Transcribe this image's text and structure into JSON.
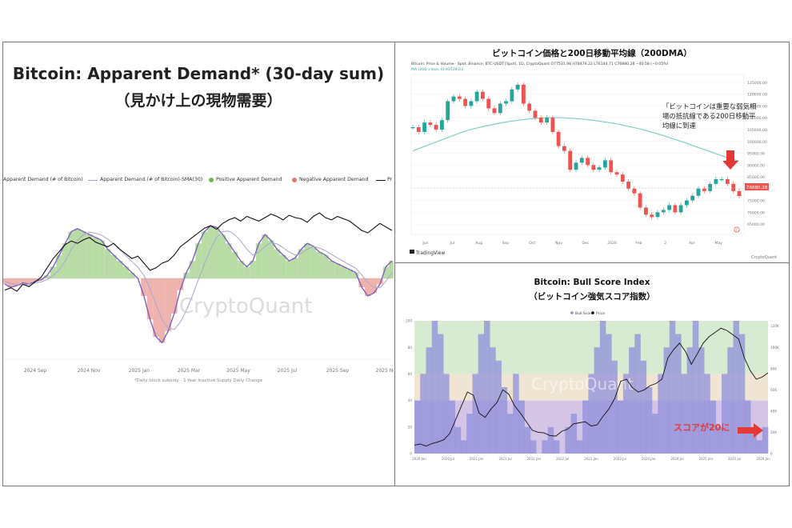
{
  "panels": {
    "left": {
      "title": "Bitcoin: Apparent Demand* (30-day sum)",
      "subtitle": "（見かけ上の現物需要）",
      "legend": [
        {
          "label": "Apparent Demand (# of Bitcoin)",
          "color": "#b38bd6",
          "kind": "line"
        },
        {
          "label": "Apparent Demand (# of Bitcoin)-SMA(30)",
          "color": "#a7a7cc",
          "kind": "line"
        },
        {
          "label": "Positive Apparent Demand",
          "color": "#6dbb4b",
          "kind": "dot"
        },
        {
          "label": "Negative Apparent Demand",
          "color": "#e07a72",
          "kind": "dot"
        },
        {
          "label": "Pr",
          "color": "#111111",
          "kind": "line"
        }
      ],
      "footnote": "*Daily block subsidy - 1-Year Inactive Supply Daily Change",
      "watermark": "CryptoQuant"
    },
    "top_right": {
      "title": "ビットコイン価格と200日移動平均線（200DMA）",
      "header_line": "Bitcoin: Price & Volume · Spot, Binance, BTC-USDT [Spot], 1D, CryptoQuant  O77531.98  H78479.22  L76144.71  C76880.28  −40.58 (−0.05%)",
      "ma_line": "MA (200, close, 0)  91639.03",
      "annotation": "「ビットコインは重要な弱気相場の抵抗線である200日移動平均線に到達",
      "price_tag": "76880.28",
      "logo": "TradingView",
      "logo_right": "CryptoQuant"
    },
    "bottom_right": {
      "title": "Bitcoin: Bull Score Index",
      "subtitle": "（ビットコイン強気スコア指数）",
      "legend": [
        {
          "label": "Bull Score",
          "color": "#8c8cd9"
        },
        {
          "label": "Price",
          "color": "#111111"
        }
      ],
      "callout": "スコアが20に",
      "watermark": "CryptoQuant",
      "colors": {
        "green_zone": "#d7ead2",
        "neutral_zone": "#f0e5d2",
        "purple_zone": "#d4c4e6",
        "score_fill": "#8c8cd9",
        "arrow": "#e53935"
      }
    }
  },
  "chart_data": [
    {
      "type": "area",
      "title": "Bitcoin: Apparent Demand* (30-day sum)",
      "subtitle": "（見かけ上の現物需要）",
      "x_ticks": [
        "2024 Sep",
        "2024 Nov",
        "2025 Jan",
        "2025 Mar",
        "2025 May",
        "2025 Jul",
        "2025 Sep",
        "2025 Nov"
      ],
      "series": [
        {
          "name": "Apparent Demand (# of Bitcoin)",
          "kind": "area",
          "values": [
            -20,
            -30,
            -25,
            -15,
            -20,
            -10,
            -5,
            10,
            40,
            80,
            120,
            160,
            170,
            160,
            150,
            140,
            130,
            100,
            80,
            60,
            40,
            20,
            0,
            -60,
            -140,
            -200,
            -220,
            -180,
            -120,
            -40,
            20,
            60,
            120,
            160,
            180,
            175,
            150,
            120,
            90,
            60,
            40,
            60,
            120,
            150,
            130,
            100,
            80,
            60,
            70,
            100,
            120,
            110,
            90,
            80,
            60,
            50,
            40,
            30,
            20,
            -30,
            -60,
            -50,
            -20,
            40,
            60
          ]
        },
        {
          "name": "Apparent Demand (# of Bitcoin)-SMA(30)",
          "kind": "line",
          "values": [
            -10,
            -18,
            -22,
            -22,
            -20,
            -16,
            -12,
            -4,
            10,
            30,
            60,
            100,
            130,
            150,
            158,
            155,
            148,
            135,
            118,
            98,
            78,
            58,
            38,
            10,
            -35,
            -90,
            -140,
            -170,
            -175,
            -150,
            -110,
            -60,
            -5,
            50,
            100,
            140,
            160,
            162,
            150,
            128,
            100,
            80,
            90,
            110,
            122,
            118,
            105,
            90,
            80,
            85,
            100,
            108,
            104,
            95,
            82,
            70,
            58,
            46,
            35,
            12,
            -15,
            -30,
            -32,
            -10,
            20
          ]
        },
        {
          "name": "Pr",
          "kind": "line",
          "values": [
            55,
            57,
            54,
            60,
            58,
            62,
            66,
            74,
            82,
            88,
            94,
            97,
            95,
            98,
            100,
            96,
            94,
            92,
            95,
            90,
            86,
            82,
            84,
            78,
            72,
            74,
            78,
            80,
            85,
            92,
            96,
            100,
            104,
            108,
            110,
            107,
            112,
            115,
            117,
            114,
            118,
            116,
            114,
            117,
            120,
            118,
            115,
            119,
            117,
            116,
            113,
            118,
            121,
            117,
            115,
            118,
            116,
            114,
            110,
            106,
            104,
            108,
            112,
            109,
            106
          ]
        }
      ]
    },
    {
      "type": "line",
      "title": "ビットコイン価格と200日移動平均線（200DMA）",
      "x_ticks": [
        "Jun",
        "Jul",
        "Aug",
        "Sep",
        "Oct",
        "Nov",
        "Dec",
        "2026",
        "Feb",
        "2",
        "Apr",
        "May"
      ],
      "y_ticks": [
        125000,
        120000,
        115000,
        110000,
        105000,
        100000,
        95000,
        90000,
        85000,
        80000,
        75000,
        70000,
        65000
      ],
      "series": [
        {
          "name": "Price",
          "kind": "line",
          "values": [
            106000,
            104000,
            108000,
            107000,
            105000,
            109000,
            117000,
            119000,
            118000,
            115000,
            117000,
            121000,
            118000,
            114000,
            112000,
            116000,
            117000,
            122000,
            124000,
            116000,
            113000,
            110000,
            108000,
            110000,
            104000,
            98000,
            96000,
            88000,
            91000,
            93000,
            90000,
            88000,
            89000,
            92000,
            87000,
            86000,
            83000,
            80000,
            78000,
            72000,
            69000,
            68000,
            70000,
            71000,
            73000,
            70000,
            73000,
            75000,
            77000,
            80000,
            79000,
            82000,
            84000,
            84000,
            82000,
            79000,
            76880
          ]
        },
        {
          "name": "MA (200, close, 0)",
          "kind": "line",
          "values": [
            96000,
            97500,
            99000,
            100500,
            102000,
            103500,
            104800,
            105800,
            106700,
            107500,
            108200,
            108800,
            109300,
            109700,
            110000,
            110100,
            110000,
            109800,
            109500,
            109100,
            108600,
            108000,
            107300,
            106500,
            105600,
            104600,
            103500,
            102300,
            101000,
            99700,
            98300,
            96900,
            95500,
            94100,
            92800,
            91639
          ]
        }
      ]
    },
    {
      "type": "area",
      "title": "Bitcoin: Bull Score Index",
      "subtitle": "（ビットコイン強気スコア指数）",
      "x_ticks": [
        "2020 Jan",
        "2020 Jul",
        "2021 Jan",
        "2021 Jul",
        "2022 Jan",
        "2022 Jul",
        "2023 Jan",
        "2023 Jul",
        "2024 Jan",
        "2024 Jul",
        "2025 Jan",
        "2025 Jul",
        "2026 Jan"
      ],
      "y_left_ticks": [
        0,
        20,
        40,
        60,
        80,
        100
      ],
      "y_right_ticks": [
        0,
        20000,
        40000,
        60000,
        80000,
        100000,
        120000
      ],
      "zones": [
        {
          "from": 60,
          "to": 100,
          "name": "bullish"
        },
        {
          "from": 40,
          "to": 60,
          "name": "neutral"
        },
        {
          "from": 0,
          "to": 40,
          "name": "bearish"
        }
      ],
      "series": [
        {
          "name": "Bull Score",
          "kind": "area",
          "values": [
            40,
            60,
            80,
            100,
            90,
            60,
            40,
            20,
            10,
            30,
            60,
            90,
            100,
            80,
            70,
            50,
            30,
            60,
            40,
            20,
            10,
            0,
            10,
            20,
            10,
            0,
            20,
            30,
            10,
            40,
            60,
            80,
            100,
            90,
            70,
            40,
            60,
            80,
            90,
            70,
            50,
            30,
            60,
            80,
            100,
            90,
            60,
            80,
            100,
            80,
            60,
            40,
            20,
            60,
            80,
            100,
            90,
            40,
            20,
            10,
            20
          ]
        },
        {
          "name": "Price",
          "kind": "line",
          "values": [
            8000,
            9000,
            7000,
            9500,
            11000,
            13000,
            19000,
            32000,
            45000,
            58000,
            55000,
            38000,
            34000,
            42000,
            48000,
            60000,
            56000,
            45000,
            38000,
            30000,
            22000,
            20000,
            19500,
            17000,
            16500,
            21000,
            23000,
            28000,
            29000,
            30000,
            26000,
            27000,
            35000,
            42000,
            52000,
            68000,
            70000,
            62000,
            58000,
            60000,
            64000,
            66000,
            70000,
            90000,
            98000,
            104000,
            96000,
            84000,
            94000,
            104000,
            110000,
            114000,
            118000,
            116000,
            112000,
            108000,
            90000,
            78000,
            70000,
            72000,
            76000
          ]
        }
      ]
    }
  ]
}
